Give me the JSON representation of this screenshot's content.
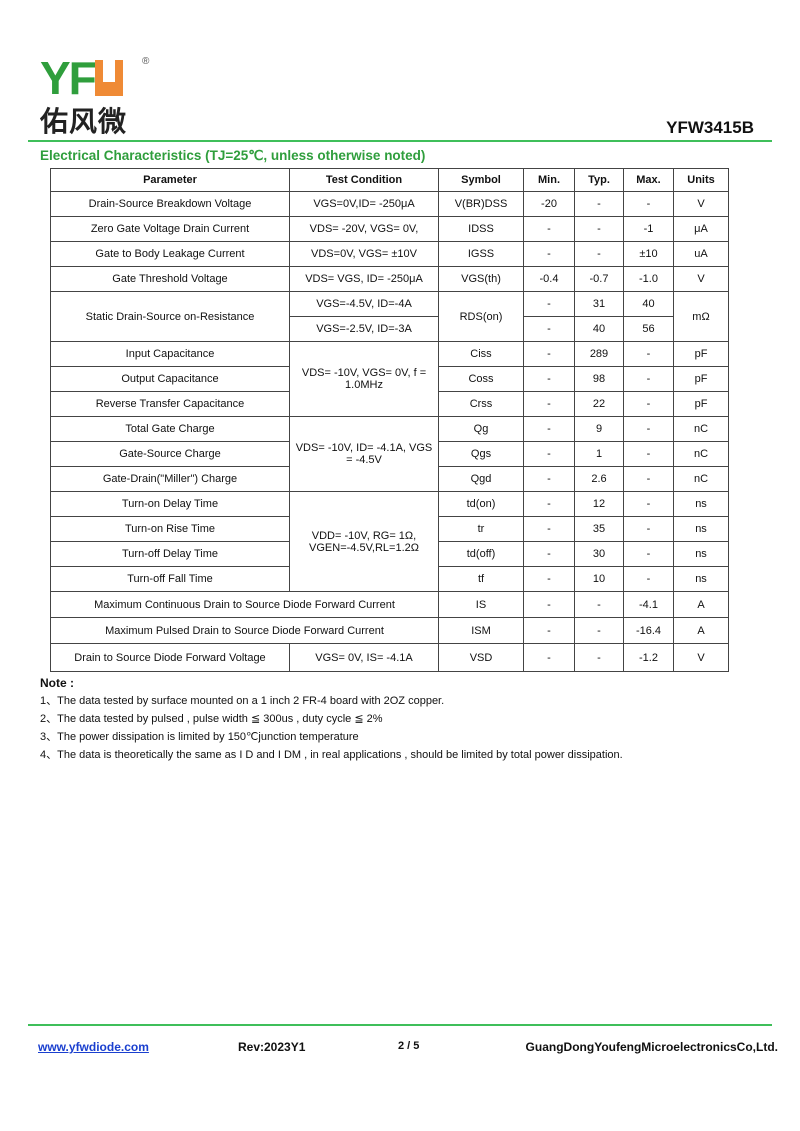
{
  "header": {
    "logo_text": "YFW",
    "logo_cn": "佑风微",
    "part_number": "YFW3415B"
  },
  "section_title": "Electrical Characteristics (TJ=25℃, unless otherwise noted)",
  "table": {
    "headers": [
      "Parameter",
      "Test Condition",
      "Symbol",
      "Min.",
      "Typ.",
      "Max.",
      "Units"
    ],
    "rows": [
      [
        "Drain-Source Breakdown Voltage",
        "VGS=0V,ID= -250μA",
        "V(BR)DSS",
        "-20",
        "-",
        "-",
        "V"
      ],
      [
        "Zero Gate Voltage Drain Current",
        "VDS= -20V, VGS= 0V,",
        "IDSS",
        "-",
        "-",
        "-1",
        "μA"
      ],
      [
        "Gate to Body Leakage Current",
        "VDS=0V, VGS= ±10V",
        "IGSS",
        "-",
        "-",
        "±10",
        "uA"
      ],
      [
        "Gate Threshold Voltage",
        "VDS= VGS, ID= -250μA",
        "VGS(th)",
        "-0.4",
        "-0.7",
        "-1.0",
        "V"
      ],
      [
        "Static Drain-Source on-Resistance",
        "VGS=-4.5V, ID=-4A",
        "RDS(on)",
        "-",
        "31",
        "40",
        "mΩ"
      ],
      [
        "",
        "VGS=-2.5V, ID=-3A",
        "",
        "-",
        "40",
        "56",
        ""
      ],
      [
        "Input Capacitance",
        "VDS= -10V, VGS= 0V, f = 1.0MHz",
        "Ciss",
        "-",
        "289",
        "-",
        "pF"
      ],
      [
        "Output Capacitance",
        "",
        "Coss",
        "-",
        "98",
        "-",
        "pF"
      ],
      [
        "Reverse Transfer Capacitance",
        "",
        "Crss",
        "-",
        "22",
        "-",
        "pF"
      ],
      [
        "Total Gate Charge",
        "VDS= -10V, ID= -4.1A, VGS = -4.5V",
        "Qg",
        "-",
        "9",
        "-",
        "nC"
      ],
      [
        "Gate-Source Charge",
        "",
        "Qgs",
        "-",
        "1",
        "-",
        "nC"
      ],
      [
        "Gate-Drain(\"Miller\") Charge",
        "",
        "Qgd",
        "-",
        "2.6",
        "-",
        "nC"
      ],
      [
        "Turn-on Delay Time",
        "VDD= -10V, RG= 1Ω, VGEN=-4.5V,RL=1.2Ω",
        "td(on)",
        "-",
        "12",
        "-",
        "ns"
      ],
      [
        "Turn-on Rise Time",
        "",
        "tr",
        "-",
        "35",
        "-",
        "ns"
      ],
      [
        "Turn-off Delay Time",
        "",
        "td(off)",
        "-",
        "30",
        "-",
        "ns"
      ],
      [
        "Turn-off Fall Time",
        "",
        "tf",
        "-",
        "10",
        "-",
        "ns"
      ],
      [
        "Maximum Continuous Drain to Source Diode Forward Current",
        "",
        "IS",
        "-",
        "-",
        "-4.1",
        "A"
      ],
      [
        "Maximum Pulsed Drain to Source Diode Forward Current",
        "",
        "ISM",
        "-",
        "-",
        "-16.4",
        "A"
      ],
      [
        "Drain to Source Diode Forward Voltage",
        "VGS= 0V, IS= -4.1A",
        "VSD",
        "-",
        "-",
        "-1.2",
        "V"
      ]
    ]
  },
  "notes": {
    "title": "Note :",
    "items": [
      "1、The data tested by surface mounted on a 1 inch 2  FR-4 board with 2OZ copper.",
      "2、The data tested by pulsed , pulse width  ≦ 300us , duty cycle  ≦ 2%",
      "3、The power dissipation is limited by 150℃junction temperature",
      "4、The data is theoretically the same as I D and I DM , in real applications , should be limited by total power dissipation."
    ]
  },
  "footer": {
    "website": "www.yfwdiode.com",
    "rev": "Rev:2023Y1",
    "page": "2 / 5",
    "company": "GuangDongYoufengMicroelectronicsCo,Ltd."
  },
  "colors": {
    "accent": "#2f9e3c",
    "logo_orange": "#ef8a35"
  }
}
